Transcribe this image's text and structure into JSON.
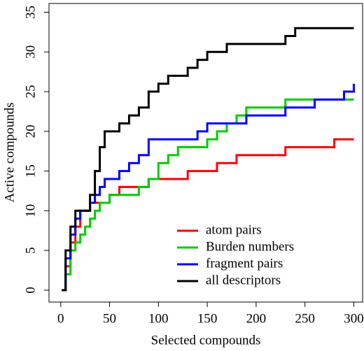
{
  "chart_data": {
    "type": "line",
    "step": "post",
    "x_label": "Selected compounds",
    "y_label": "Active compounds",
    "x": [
      1,
      5,
      10,
      15,
      20,
      25,
      30,
      35,
      40,
      45,
      50,
      60,
      70,
      80,
      90,
      100,
      110,
      120,
      130,
      140,
      150,
      160,
      170,
      180,
      190,
      200,
      210,
      220,
      230,
      240,
      250,
      260,
      270,
      280,
      290,
      300
    ],
    "series": [
      {
        "name": "atom pairs",
        "color": "#ff0000",
        "values": [
          0,
          3,
          6,
          8,
          10,
          10,
          11,
          11,
          11,
          11,
          12,
          13,
          13,
          13,
          14,
          14,
          14,
          14,
          15,
          15,
          15,
          16,
          16,
          17,
          17,
          17,
          17,
          17,
          18,
          18,
          18,
          18,
          18,
          19,
          19,
          19
        ]
      },
      {
        "name": "Burden numbers",
        "color": "#00cc00",
        "values": [
          0,
          2,
          5,
          6,
          7,
          8,
          9,
          10,
          11,
          11,
          12,
          12,
          12,
          13,
          14,
          16,
          17,
          18,
          18,
          18,
          19,
          20,
          21,
          22,
          23,
          23,
          23,
          23,
          24,
          24,
          24,
          24,
          24,
          24,
          24,
          24
        ]
      },
      {
        "name": "fragment pairs",
        "color": "#0000ff",
        "values": [
          0,
          4,
          7,
          9,
          10,
          10,
          11,
          12,
          13,
          14,
          14,
          15,
          16,
          17,
          19,
          19,
          19,
          19,
          19,
          20,
          21,
          21,
          21,
          21,
          22,
          22,
          22,
          22,
          23,
          23,
          23,
          24,
          24,
          24,
          25,
          26
        ]
      },
      {
        "name": "all descriptors",
        "color": "#000000",
        "values": [
          0,
          5,
          8,
          10,
          10,
          10,
          12,
          15,
          18,
          20,
          20,
          21,
          22,
          23,
          25,
          26,
          27,
          27,
          28,
          29,
          30,
          30,
          31,
          31,
          31,
          31,
          31,
          31,
          32,
          33,
          33,
          33,
          33,
          33,
          33,
          33
        ]
      }
    ],
    "xlim": [
      -12,
      309
    ],
    "ylim": [
      -1.5,
      36.1
    ],
    "xticks": [
      0,
      50,
      100,
      150,
      200,
      250,
      300
    ],
    "yticks": [
      0,
      5,
      10,
      15,
      20,
      25,
      30,
      35
    ],
    "legend": "lower right",
    "grid": false
  }
}
